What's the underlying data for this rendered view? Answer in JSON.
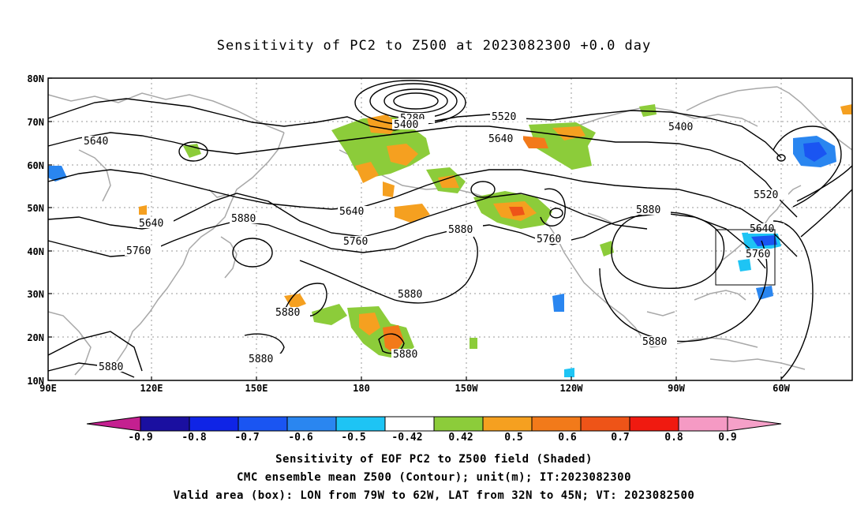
{
  "title": "Sensitivity of PC2 to Z500 at 2023082300 +0.0 day",
  "axes": {
    "lat_labels": [
      "80N",
      "70N",
      "60N",
      "50N",
      "40N",
      "30N",
      "20N",
      "10N"
    ],
    "lon_labels": [
      "90E",
      "120E",
      "150E",
      "180",
      "150W",
      "120W",
      "90W",
      "60W"
    ]
  },
  "contour_labels": [
    "5280",
    "5400",
    "5520",
    "5640",
    "5400",
    "5640",
    "5640",
    "5880",
    "5640",
    "5760",
    "5880",
    "5760",
    "5880",
    "5520",
    "5640",
    "5760",
    "5880",
    "5880",
    "5880",
    "5880",
    "5880",
    "5760",
    "5880"
  ],
  "valid_box": {
    "lon_min": -79,
    "lon_max": -62,
    "lat_min": 32,
    "lat_max": 45
  },
  "colorbar": {
    "labels": [
      "-0.9",
      "-0.8",
      "-0.7",
      "-0.6",
      "-0.5",
      "-0.42",
      "0.42",
      "0.5",
      "0.6",
      "0.7",
      "0.8",
      "0.9"
    ],
    "colors": [
      "#1a0fa0",
      "#0f24e6",
      "#1a55f2",
      "#2a86f0",
      "#1ec4f4",
      "#ffffff",
      "#8ccc3a",
      "#f5a020",
      "#f27a1a",
      "#ee5418",
      "#f01a10",
      "#f59ac4"
    ],
    "end_low": "#c42090",
    "end_high": "#f5a0c8"
  },
  "footer": {
    "line1": "Sensitivity of EOF PC2 to Z500 field (Shaded)",
    "line2": "CMC ensemble mean Z500 (Contour); unit(m); IT:2023082300",
    "line3": "Valid area (box): LON from 79W to 62W, LAT from 32N to 45N; VT: 2023082500"
  }
}
